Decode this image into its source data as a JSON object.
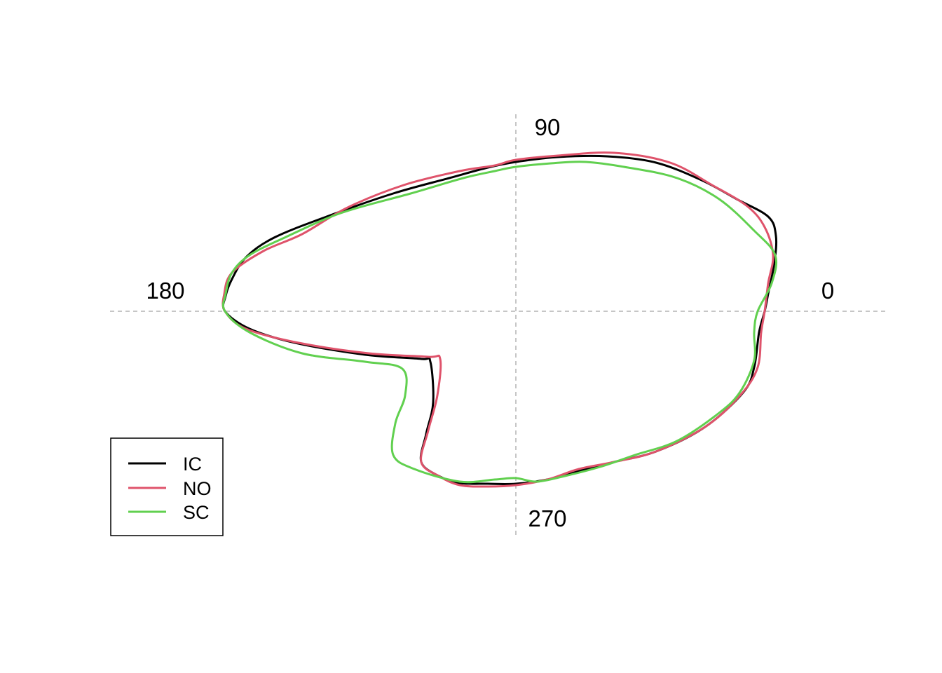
{
  "chart_data": {
    "type": "line",
    "coordinate_system": "polar",
    "title": "",
    "xlabel": "",
    "ylabel": "",
    "grid": "dashed axes through origin at 0/90/180/270 degrees",
    "angle_labels": [
      "0",
      "90",
      "180",
      "270"
    ],
    "legend_position": "bottom-left",
    "series": [
      {
        "name": "IC",
        "color": "#000000",
        "points": [
          [
            -415,
            0
          ],
          [
            -414,
            22
          ],
          [
            -405,
            46
          ],
          [
            -385,
            77
          ],
          [
            -345,
            105
          ],
          [
            -270,
            135
          ],
          [
            -175,
            168
          ],
          [
            -95,
            190
          ],
          [
            -40,
            205
          ],
          [
            0,
            213
          ],
          [
            60,
            220
          ],
          [
            130,
            221
          ],
          [
            200,
            212
          ],
          [
            265,
            187
          ],
          [
            315,
            160
          ],
          [
            360,
            135
          ],
          [
            371,
            108
          ],
          [
            369,
            70
          ],
          [
            360,
            25
          ],
          [
            355,
            0
          ],
          [
            347,
            -30
          ],
          [
            340,
            -80
          ],
          [
            325,
            -115
          ],
          [
            270,
            -165
          ],
          [
            200,
            -200
          ],
          [
            140,
            -215
          ],
          [
            90,
            -228
          ],
          [
            45,
            -240
          ],
          [
            0,
            -246
          ],
          [
            -40,
            -246
          ],
          [
            -80,
            -245
          ],
          [
            -110,
            -235
          ],
          [
            -135,
            -215
          ],
          [
            -128,
            -175
          ],
          [
            -118,
            -130
          ],
          [
            -122,
            -72
          ],
          [
            -135,
            -68
          ],
          [
            -215,
            -62
          ],
          [
            -315,
            -45
          ],
          [
            -380,
            -25
          ],
          [
            -415,
            0
          ]
        ]
      },
      {
        "name": "NO",
        "color": "#DF536B",
        "points": [
          [
            -415,
            0
          ],
          [
            -416,
            25
          ],
          [
            -405,
            55
          ],
          [
            -360,
            86
          ],
          [
            -305,
            110
          ],
          [
            -240,
            148
          ],
          [
            -160,
            180
          ],
          [
            -80,
            200
          ],
          [
            -30,
            208
          ],
          [
            0,
            216
          ],
          [
            60,
            222
          ],
          [
            140,
            226
          ],
          [
            220,
            212
          ],
          [
            280,
            180
          ],
          [
            330,
            150
          ],
          [
            355,
            120
          ],
          [
            367,
            80
          ],
          [
            360,
            40
          ],
          [
            355,
            0
          ],
          [
            350,
            -30
          ],
          [
            345,
            -80
          ],
          [
            320,
            -120
          ],
          [
            270,
            -165
          ],
          [
            200,
            -200
          ],
          [
            140,
            -215
          ],
          [
            90,
            -225
          ],
          [
            45,
            -240
          ],
          [
            0,
            -248
          ],
          [
            -40,
            -250
          ],
          [
            -80,
            -248
          ],
          [
            -110,
            -235
          ],
          [
            -135,
            -215
          ],
          [
            -125,
            -170
          ],
          [
            -112,
            -120
          ],
          [
            -108,
            -68
          ],
          [
            -125,
            -65
          ],
          [
            -210,
            -60
          ],
          [
            -310,
            -45
          ],
          [
            -385,
            -25
          ],
          [
            -415,
            0
          ]
        ]
      },
      {
        "name": "SC",
        "color": "#61D04F",
        "points": [
          [
            -415,
            0
          ],
          [
            -414,
            25
          ],
          [
            -405,
            55
          ],
          [
            -380,
            80
          ],
          [
            -330,
            105
          ],
          [
            -250,
            140
          ],
          [
            -150,
            168
          ],
          [
            -75,
            190
          ],
          [
            -30,
            200
          ],
          [
            0,
            206
          ],
          [
            50,
            211
          ],
          [
            100,
            213
          ],
          [
            160,
            205
          ],
          [
            230,
            190
          ],
          [
            290,
            160
          ],
          [
            340,
            115
          ],
          [
            370,
            80
          ],
          [
            365,
            40
          ],
          [
            345,
            0
          ],
          [
            340,
            -30
          ],
          [
            340,
            -70
          ],
          [
            320,
            -115
          ],
          [
            290,
            -145
          ],
          [
            230,
            -185
          ],
          [
            170,
            -205
          ],
          [
            120,
            -222
          ],
          [
            70,
            -235
          ],
          [
            30,
            -243
          ],
          [
            0,
            -238
          ],
          [
            -30,
            -240
          ],
          [
            -80,
            -243
          ],
          [
            -145,
            -225
          ],
          [
            -175,
            -205
          ],
          [
            -172,
            -160
          ],
          [
            -158,
            -120
          ],
          [
            -162,
            -82
          ],
          [
            -215,
            -72
          ],
          [
            -305,
            -60
          ],
          [
            -380,
            -30
          ],
          [
            -415,
            0
          ]
        ]
      }
    ]
  }
}
